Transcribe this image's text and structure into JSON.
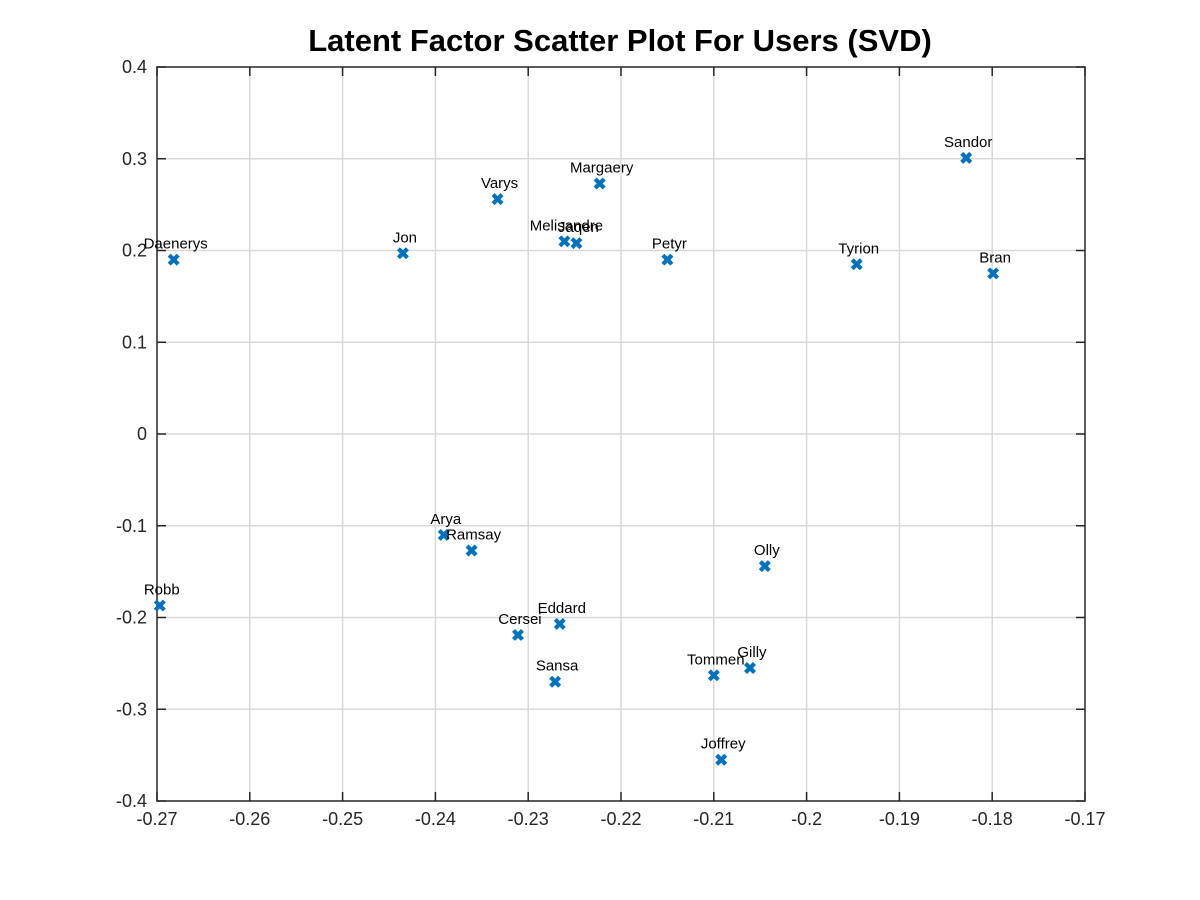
{
  "chart_data": {
    "type": "scatter",
    "title": "Latent Factor Scatter Plot For Users (SVD)",
    "xlabel": "",
    "ylabel": "",
    "xlim": [
      -0.27,
      -0.17
    ],
    "ylim": [
      -0.4,
      0.4
    ],
    "xticks": [
      "-0.27",
      "-0.26",
      "-0.25",
      "-0.24",
      "-0.23",
      "-0.22",
      "-0.21",
      "-0.2",
      "-0.19",
      "-0.18",
      "-0.17"
    ],
    "xtick_values": [
      -0.27,
      -0.26,
      -0.25,
      -0.24,
      -0.23,
      -0.22,
      -0.21,
      -0.2,
      -0.19,
      -0.18,
      -0.17
    ],
    "yticks": [
      "0.4",
      "0.3",
      "0.2",
      "0.1",
      "0",
      "-0.1",
      "-0.2",
      "-0.3",
      "-0.4"
    ],
    "ytick_values": [
      0.4,
      0.3,
      0.2,
      0.1,
      0,
      -0.1,
      -0.2,
      -0.3,
      -0.4
    ],
    "grid": true,
    "marker": "x",
    "marker_color": "#0072BD",
    "points": [
      {
        "label": "Daenerys",
        "x": -0.2682,
        "y": 0.19
      },
      {
        "label": "Jon",
        "x": -0.2435,
        "y": 0.197
      },
      {
        "label": "Varys",
        "x": -0.2333,
        "y": 0.256
      },
      {
        "label": "Margaery",
        "x": -0.2223,
        "y": 0.273
      },
      {
        "label": "Melisandre",
        "x": -0.2261,
        "y": 0.21
      },
      {
        "label": "Jaqen",
        "x": -0.2248,
        "y": 0.208
      },
      {
        "label": "Petyr",
        "x": -0.215,
        "y": 0.19
      },
      {
        "label": "Sandor",
        "x": -0.1828,
        "y": 0.301
      },
      {
        "label": "Tyrion",
        "x": -0.1946,
        "y": 0.185
      },
      {
        "label": "Bran",
        "x": -0.1799,
        "y": 0.175
      },
      {
        "label": "Arya",
        "x": -0.2391,
        "y": -0.11
      },
      {
        "label": "Ramsay",
        "x": -0.2361,
        "y": -0.127
      },
      {
        "label": "Olly",
        "x": -0.2045,
        "y": -0.144
      },
      {
        "label": "Robb",
        "x": -0.2697,
        "y": -0.187
      },
      {
        "label": "Cersei",
        "x": -0.2311,
        "y": -0.219
      },
      {
        "label": "Eddard",
        "x": -0.2266,
        "y": -0.207
      },
      {
        "label": "Sansa",
        "x": -0.2271,
        "y": -0.27
      },
      {
        "label": "Tommen",
        "x": -0.21,
        "y": -0.263
      },
      {
        "label": "Gilly",
        "x": -0.2061,
        "y": -0.255
      },
      {
        "label": "Joffrey",
        "x": -0.2092,
        "y": -0.355
      }
    ]
  }
}
